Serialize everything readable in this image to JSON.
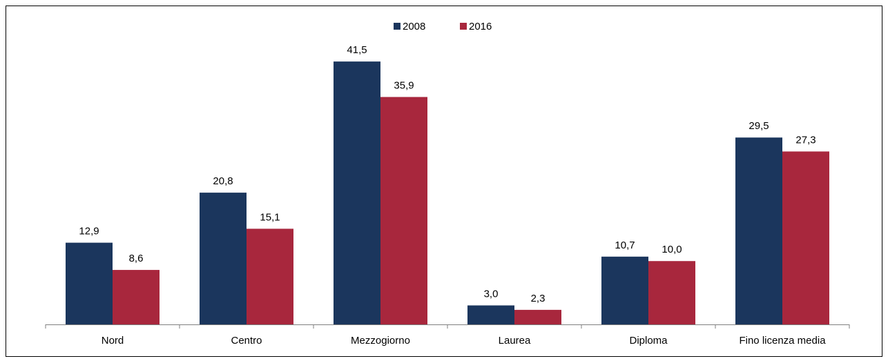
{
  "chart_data": {
    "type": "bar",
    "categories": [
      "Nord",
      "Centro",
      "Mezzogiorno",
      "Laurea",
      "Diploma",
      "Fino licenza media"
    ],
    "series": [
      {
        "name": "2008",
        "color": "#1b365d",
        "values": [
          12.9,
          20.8,
          41.5,
          3.0,
          10.7,
          29.5
        ],
        "value_labels": [
          "12,9",
          "20,8",
          "41,5",
          "3,0",
          "10,7",
          "29,5"
        ]
      },
      {
        "name": "2016",
        "color": "#a8273d",
        "values": [
          8.6,
          15.1,
          35.9,
          2.3,
          10.0,
          27.3
        ],
        "value_labels": [
          "8,6",
          "15,1",
          "35,9",
          "2,3",
          "10,0",
          "27,3"
        ]
      }
    ],
    "ylim": [
      0,
      45
    ],
    "legend": "top"
  }
}
